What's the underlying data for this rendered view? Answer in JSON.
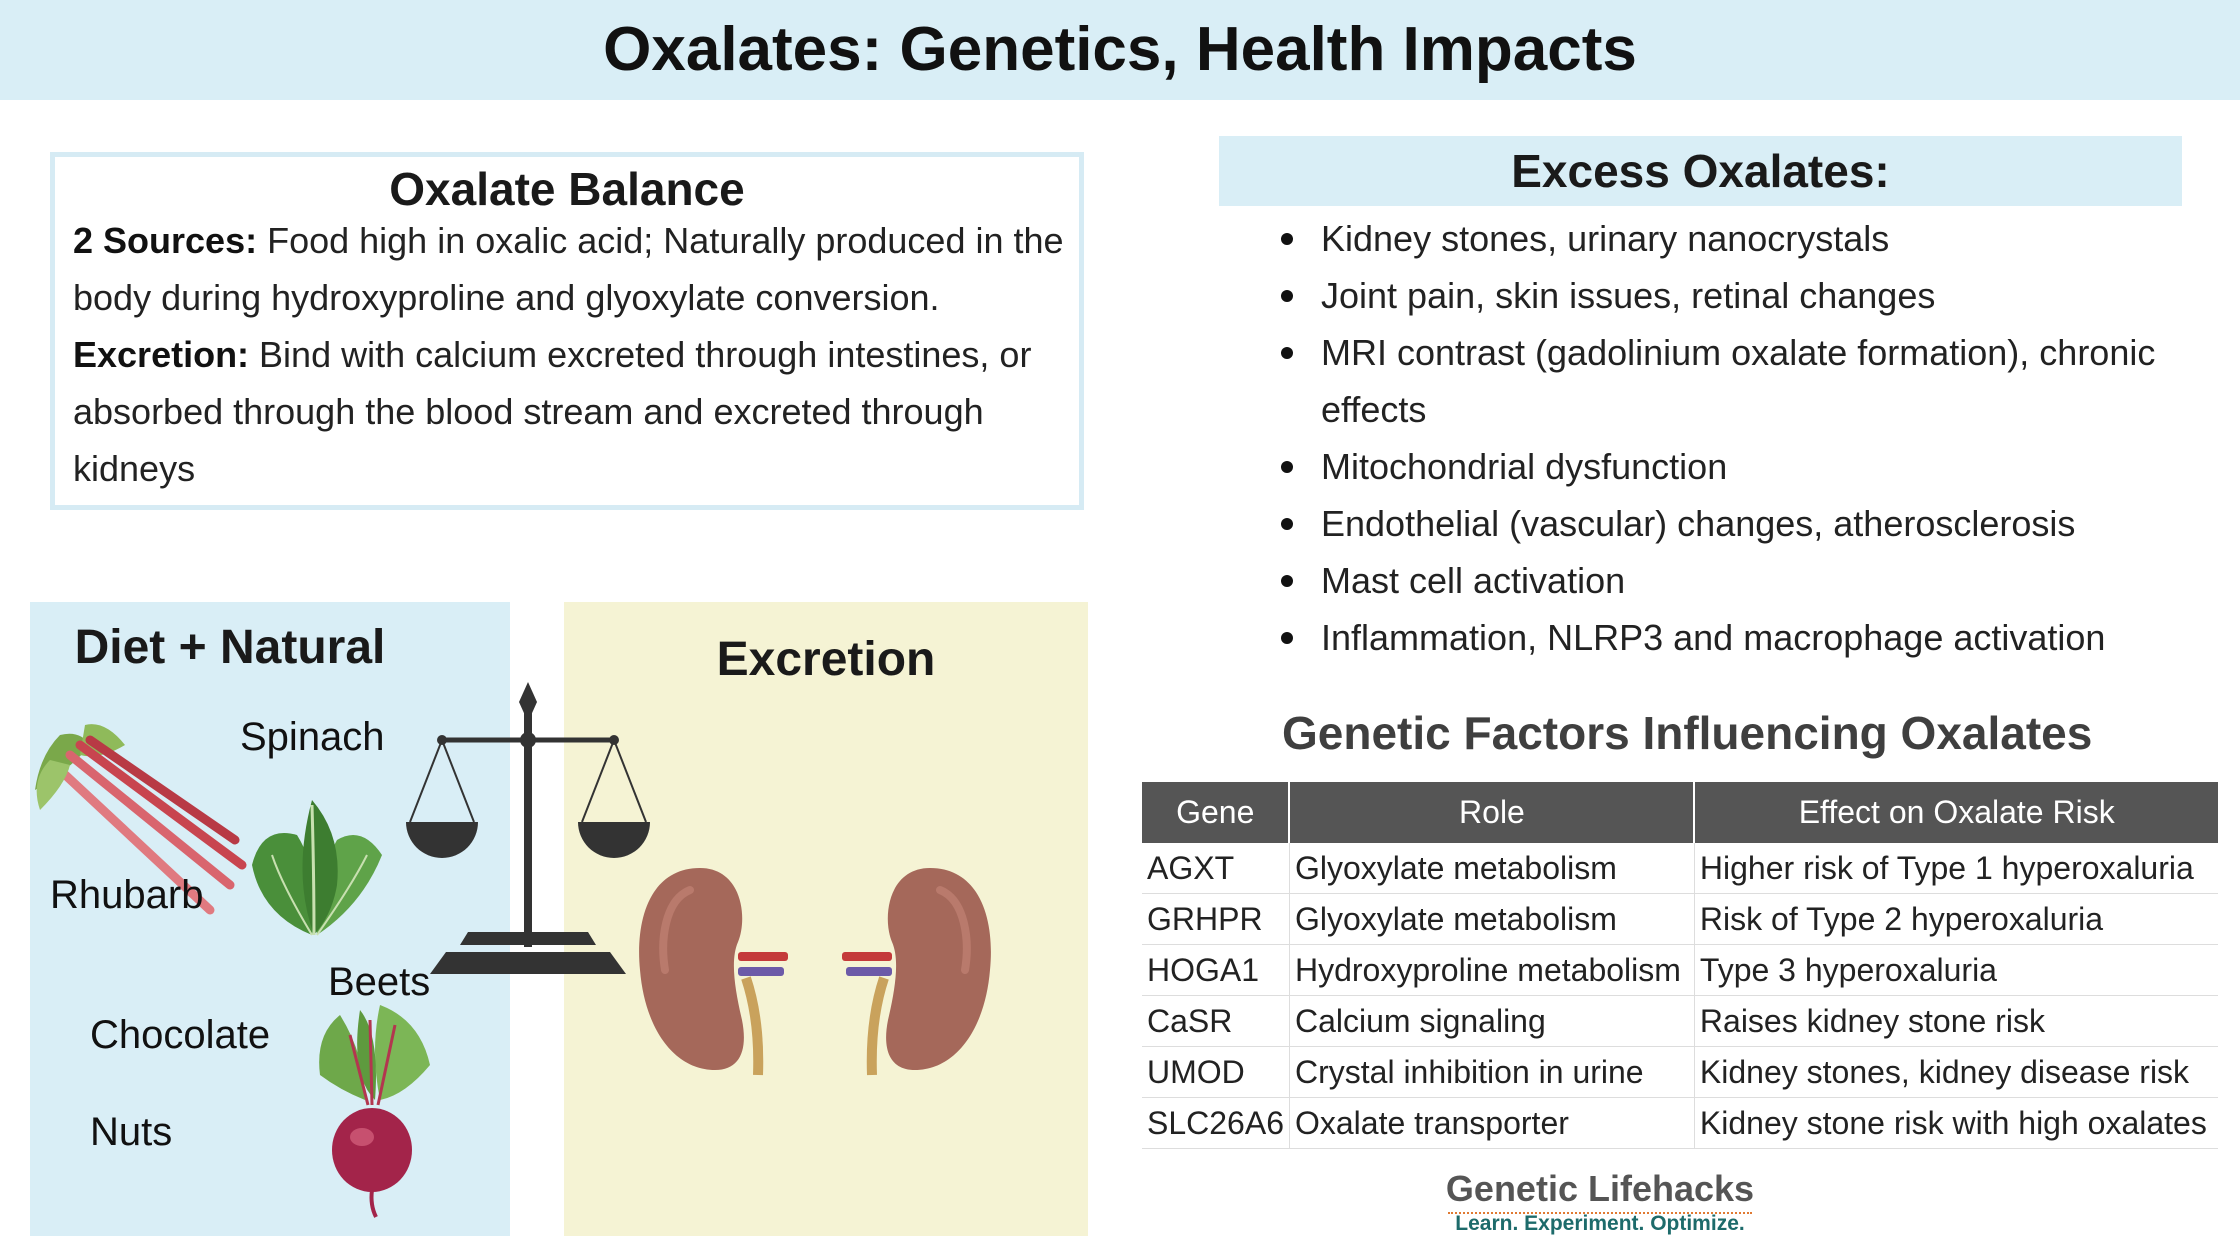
{
  "title": "Oxalates: Genetics, Health Impacts",
  "balance": {
    "heading": "Oxalate Balance",
    "lines": [
      {
        "bold": "2 Sources:",
        "text": " Food high in oxalic acid; Naturally produced in the"
      },
      {
        "bold": "",
        "text": "body during hydroxyproline and glyoxylate conversion."
      },
      {
        "bold": "Excretion:",
        "text": " Bind with calcium excreted through intestines, or"
      },
      {
        "bold": "",
        "text": "absorbed through the blood stream and excreted through"
      },
      {
        "bold": "",
        "text": "kidneys"
      }
    ]
  },
  "excess": {
    "heading": "Excess Oxalates:",
    "items": [
      "Kidney stones, urinary nanocrystals",
      "Joint pain, skin issues, retinal changes",
      "MRI contrast (gadolinium oxalate formation), chronic effects",
      "Mitochondrial dysfunction",
      "Endothelial (vascular) changes, atherosclerosis",
      "Mast cell activation",
      "Inflammation, NLRP3 and macrophage activation"
    ]
  },
  "diagram": {
    "diet_heading": "Diet + Natural",
    "excretion_heading": "Excretion",
    "foods": {
      "spinach": "Spinach",
      "rhubarb": "Rhubarb",
      "beets": "Beets",
      "chocolate": "Chocolate",
      "nuts": "Nuts"
    }
  },
  "genetics": {
    "heading": "Genetic Factors Influencing Oxalates",
    "columns": [
      "Gene",
      "Role",
      "Effect on Oxalate Risk"
    ],
    "rows": [
      [
        "AGXT",
        "Glyoxylate metabolism",
        "Higher risk of Type 1 hyperoxaluria"
      ],
      [
        "GRHPR",
        "Glyoxylate metabolism",
        "Risk of Type 2 hyperoxaluria"
      ],
      [
        "HOGA1",
        "Hydroxyproline metabolism",
        "Type 3 hyperoxaluria"
      ],
      [
        "CaSR",
        "Calcium signaling",
        "Raises kidney stone risk"
      ],
      [
        "UMOD",
        "Crystal inhibition in urine",
        "Kidney stones, kidney disease risk"
      ],
      [
        "SLC26A6",
        "Oxalate transporter",
        "Kidney stone risk with high oxalates"
      ]
    ]
  },
  "brand": {
    "name": "Genetic Lifehacks",
    "tagline": "Learn. Experiment. Optimize."
  },
  "colors": {
    "header_bg": "#d9eef6",
    "diet_bg": "#d9eef6",
    "excretion_bg": "#f5f3d4",
    "table_header": "#555555",
    "brand_teal": "#1d6b6b",
    "brand_orange": "#e07a33"
  }
}
